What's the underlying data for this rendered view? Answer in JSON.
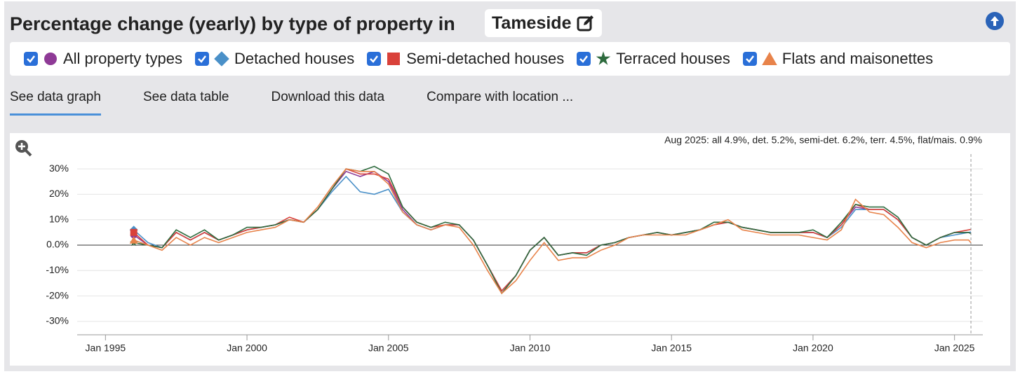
{
  "header": {
    "title": "Percentage change (yearly) by type of property in",
    "location": "Tameside"
  },
  "tabs": [
    "See data graph",
    "See data table",
    "Download this data",
    "Compare with location ..."
  ],
  "chart_data": {
    "type": "line",
    "annotation": "Aug 2025: all 4.9%, det. 5.2%, semi-det. 6.2%, terr. 4.5%, flat/mais. 0.9%",
    "x": [
      1996.0,
      1996.5,
      1997.0,
      1997.5,
      1998.0,
      1998.5,
      1999.0,
      1999.5,
      2000.0,
      2000.5,
      2001.0,
      2001.5,
      2002.0,
      2002.5,
      2003.0,
      2003.5,
      2004.0,
      2004.5,
      2005.0,
      2005.5,
      2006.0,
      2006.5,
      2007.0,
      2007.5,
      2008.0,
      2008.5,
      2009.0,
      2009.5,
      2010.0,
      2010.5,
      2011.0,
      2011.5,
      2012.0,
      2012.5,
      2013.0,
      2013.5,
      2014.0,
      2014.5,
      2015.0,
      2015.5,
      2016.0,
      2016.5,
      2017.0,
      2017.5,
      2018.0,
      2018.5,
      2019.0,
      2019.5,
      2020.0,
      2020.5,
      2021.0,
      2021.5,
      2022.0,
      2022.5,
      2023.0,
      2023.5,
      2024.0,
      2024.5,
      2025.0,
      2025.5,
      2025.58
    ],
    "series": [
      {
        "name": "All property types",
        "color": "#8e3a96",
        "marker": "circle",
        "values": [
          4,
          0,
          -1,
          5,
          2,
          5,
          2,
          4,
          6,
          7,
          8,
          10,
          9,
          14,
          22,
          29,
          27,
          29,
          25,
          14,
          8,
          6,
          8,
          8,
          2,
          -8,
          -18,
          -12,
          -2,
          3,
          -4,
          -3,
          -3,
          0,
          1,
          3,
          4,
          5,
          4,
          5,
          6,
          8,
          9,
          7,
          6,
          5,
          5,
          5,
          5,
          3,
          8,
          15,
          14,
          14,
          10,
          3,
          0,
          3,
          5,
          5,
          4.9
        ]
      },
      {
        "name": "Detached houses",
        "color": "#4a90c8",
        "marker": "diamond",
        "values": [
          6,
          1,
          -1,
          5,
          2,
          5,
          2,
          4,
          6,
          7,
          8,
          10,
          9,
          14,
          21,
          27,
          21,
          20,
          22,
          13,
          8,
          6,
          8,
          8,
          2,
          -8,
          -18,
          -12,
          -2,
          3,
          -4,
          -3,
          -3,
          0,
          1,
          3,
          4,
          5,
          4,
          5,
          6,
          8,
          9,
          7,
          6,
          5,
          5,
          5,
          5,
          3,
          7,
          14,
          14,
          14,
          10,
          3,
          0,
          3,
          4,
          5,
          5.2
        ]
      },
      {
        "name": "Semi-detached houses",
        "color": "#d9413a",
        "marker": "square",
        "values": [
          5,
          0,
          -1,
          5,
          2,
          5,
          2,
          4,
          6,
          7,
          8,
          11,
          9,
          14,
          22,
          30,
          28,
          28,
          26,
          15,
          9,
          7,
          8,
          8,
          2,
          -8,
          -18,
          -12,
          -2,
          3,
          -4,
          -3,
          -3,
          0,
          1,
          3,
          4,
          5,
          4,
          5,
          6,
          8,
          9,
          7,
          6,
          5,
          5,
          5,
          5,
          3,
          8,
          16,
          14,
          14,
          10,
          3,
          0,
          3,
          5,
          6,
          6.2
        ]
      },
      {
        "name": "Terraced houses",
        "color": "#2e6b3e",
        "marker": "star",
        "values": [
          1,
          0,
          -1,
          6,
          3,
          6,
          2,
          4,
          7,
          7,
          8,
          10,
          9,
          14,
          22,
          30,
          29,
          31,
          28,
          15,
          9,
          7,
          9,
          8,
          2,
          -8,
          -19,
          -12,
          -2,
          3,
          -4,
          -3,
          -4,
          0,
          1,
          3,
          4,
          5,
          4,
          5,
          6,
          9,
          9,
          7,
          6,
          5,
          5,
          5,
          6,
          3,
          9,
          16,
          15,
          15,
          11,
          3,
          0,
          3,
          5,
          5,
          4.5
        ]
      },
      {
        "name": "Flats and maisonettes",
        "color": "#e8834a",
        "marker": "triangle",
        "values": [
          2,
          0,
          -2,
          3,
          0,
          3,
          1,
          3,
          5,
          6,
          7,
          10,
          9,
          15,
          23,
          30,
          29,
          29,
          24,
          13,
          8,
          6,
          8,
          7,
          0,
          -10,
          -19,
          -14,
          -6,
          1,
          -6,
          -5,
          -5,
          -2,
          0,
          3,
          4,
          4,
          4,
          4,
          6,
          8,
          10,
          6,
          5,
          4,
          4,
          4,
          3,
          2,
          6,
          18,
          13,
          12,
          7,
          1,
          -1,
          1,
          2,
          2,
          0.9
        ]
      }
    ],
    "xlim": [
      1994,
      2026
    ],
    "xticks": [
      {
        "value": 1995,
        "label": "Jan 1995"
      },
      {
        "value": 2000,
        "label": "Jan 2000"
      },
      {
        "value": 2005,
        "label": "Jan 2005"
      },
      {
        "value": 2010,
        "label": "Jan 2010"
      },
      {
        "value": 2015,
        "label": "Jan 2015"
      },
      {
        "value": 2020,
        "label": "Jan 2020"
      },
      {
        "value": 2025,
        "label": "Jan 2025"
      }
    ],
    "ylim": [
      -35,
      35
    ],
    "yticks": [
      {
        "value": -30,
        "label": "-30%"
      },
      {
        "value": -20,
        "label": "-20%"
      },
      {
        "value": -10,
        "label": "-10%"
      },
      {
        "value": 0,
        "label": "0.0%"
      },
      {
        "value": 10,
        "label": "10%"
      },
      {
        "value": 20,
        "label": "20%"
      },
      {
        "value": 30,
        "label": "30%"
      }
    ],
    "grid": true
  }
}
